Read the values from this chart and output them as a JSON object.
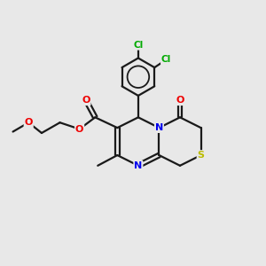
{
  "background_color": "#e8e8e8",
  "bond_color": "#1a1a1a",
  "atom_colors": {
    "N": "#0000ee",
    "O": "#ee0000",
    "S": "#bbbb00",
    "Cl": "#00aa00",
    "C": "#1a1a1a"
  },
  "figsize": [
    3.0,
    3.0
  ],
  "dpi": 100
}
